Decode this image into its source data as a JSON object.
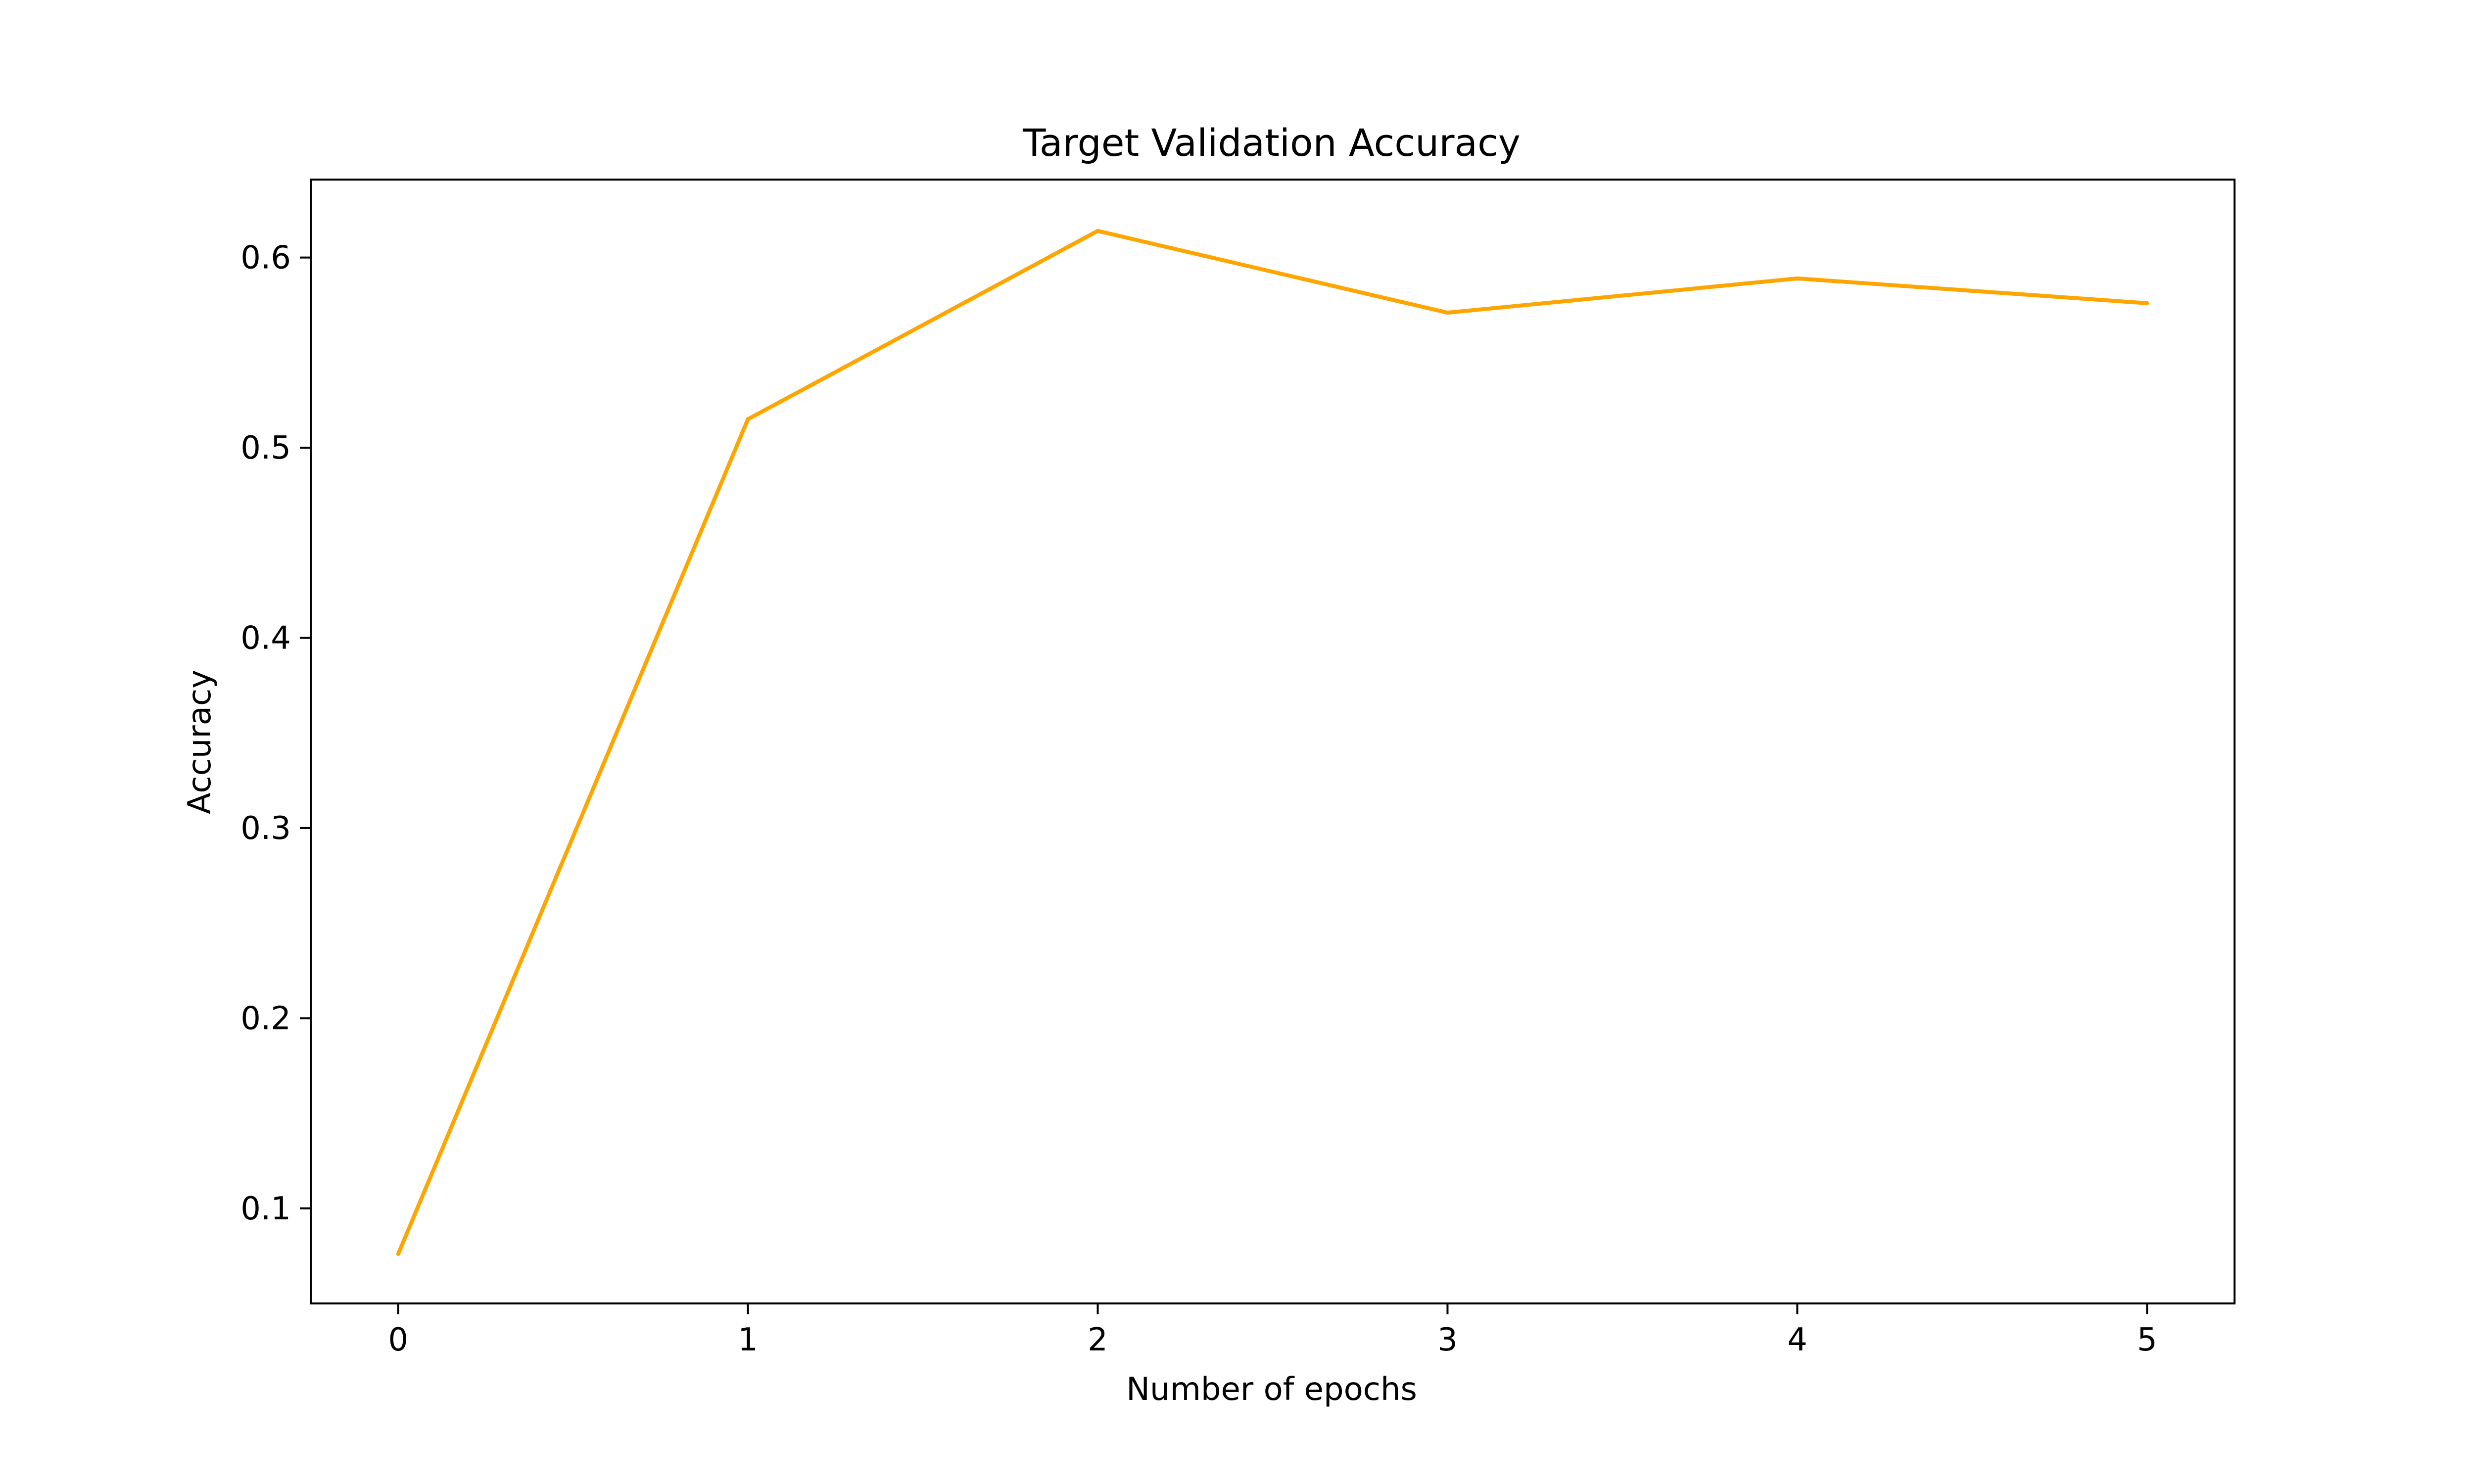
{
  "chart_data": {
    "type": "line",
    "title": "Target Validation Accuracy",
    "xlabel": "Number of epochs",
    "ylabel": "Accuracy",
    "x": [
      0,
      1,
      2,
      3,
      4,
      5
    ],
    "series": [
      {
        "values": [
          0.076,
          0.515,
          0.614,
          0.571,
          0.589,
          0.576
        ],
        "color": "#FFA500"
      }
    ],
    "xlim": [
      -0.25,
      5.25
    ],
    "ylim": [
      0.05,
      0.641
    ],
    "xticks": [
      0,
      1,
      2,
      3,
      4,
      5
    ],
    "xtick_labels": [
      "0",
      "1",
      "2",
      "3",
      "4",
      "5"
    ],
    "yticks": [
      0.1,
      0.2,
      0.3,
      0.4,
      0.5,
      0.6
    ],
    "ytick_labels": [
      "0.1",
      "0.2",
      "0.3",
      "0.4",
      "0.5",
      "0.6"
    ],
    "grid": false,
    "legend": "none"
  }
}
